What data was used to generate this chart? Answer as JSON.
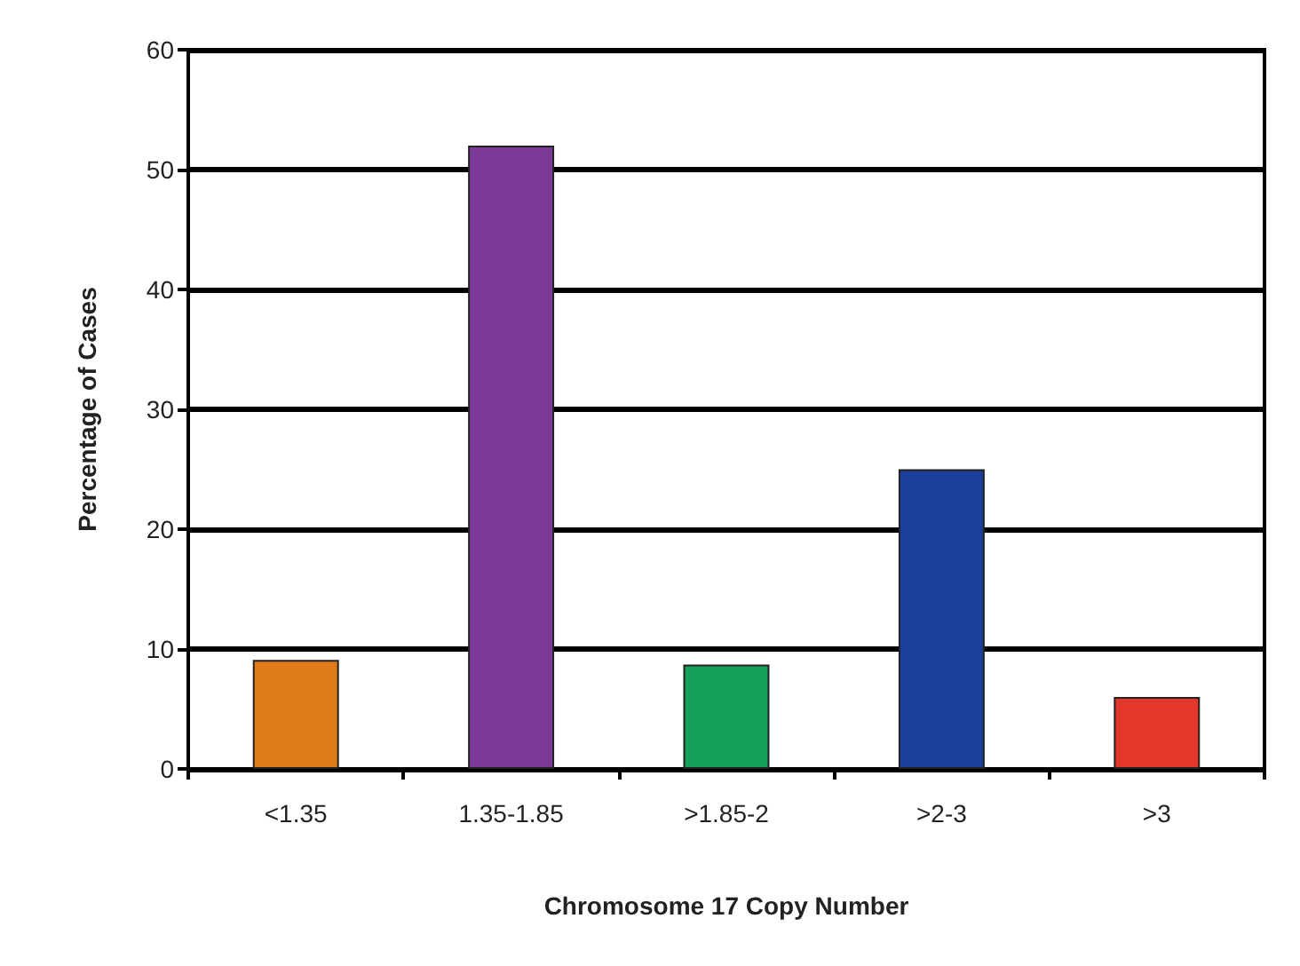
{
  "chart_data": {
    "type": "bar",
    "xlabel": "Chromosome 17 Copy Number",
    "ylabel": "Percentage of Cases",
    "categories": [
      "<1.35",
      "1.35-1.85",
      ">1.85-2",
      ">2-3",
      ">3"
    ],
    "values": [
      9.1,
      52,
      8.7,
      25,
      6
    ],
    "colors": [
      "#e07b1a",
      "#7b3a96",
      "#17a05a",
      "#1c3f9c",
      "#e3372b"
    ],
    "ylim": [
      0,
      60
    ],
    "yticks": [
      0,
      10,
      20,
      30,
      40,
      50,
      60
    ],
    "grid": "y"
  }
}
